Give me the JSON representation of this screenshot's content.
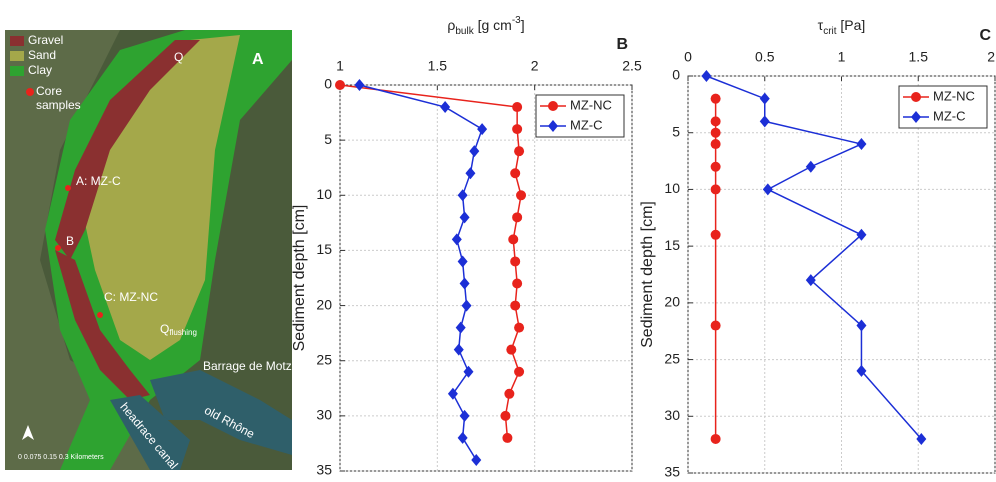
{
  "map": {
    "panel": "A",
    "legend": [
      "Gravel",
      "Sand",
      "Clay"
    ],
    "core_legend": [
      "Core",
      "samples"
    ],
    "flow": "Q",
    "flushing": {
      "symbol": "Q",
      "subscript": "flushing"
    },
    "sites": [
      "A: MZ-C",
      "B",
      "C: MZ-NC"
    ],
    "places": [
      "Barrage de Motz",
      "old Rhône",
      "headrace canal"
    ],
    "scale": "0  0.075 0.15        0.3 Kilometers"
  },
  "chart_data": [
    {
      "type": "line",
      "panel": "B",
      "title_parts": [
        "ρ",
        "bulk",
        " [g cm",
        "-3",
        "]"
      ],
      "ylabel": "Sediment depth [cm]",
      "xlim": [
        1,
        2.5
      ],
      "xticks": [
        1,
        1.5,
        2,
        2.5
      ],
      "ylim": [
        0,
        35
      ],
      "yticks": [
        0,
        5,
        10,
        15,
        20,
        25,
        30,
        35
      ],
      "y_inverted": true,
      "grid": true,
      "legend": "upper right",
      "series": [
        {
          "name": "MZ-NC",
          "color": "#e8231c",
          "marker": "circle",
          "depth": [
            0,
            2,
            4,
            6,
            8,
            10,
            12,
            14,
            16,
            18,
            20,
            22,
            24,
            26,
            28,
            30,
            32
          ],
          "values": [
            1.0,
            1.91,
            1.91,
            1.92,
            1.9,
            1.93,
            1.91,
            1.89,
            1.9,
            1.91,
            1.9,
            1.92,
            1.88,
            1.92,
            1.87,
            1.85,
            1.86
          ]
        },
        {
          "name": "MZ-C",
          "color": "#1c2fd6",
          "marker": "diamond",
          "depth": [
            0,
            2,
            4,
            6,
            8,
            10,
            12,
            14,
            16,
            18,
            20,
            22,
            24,
            26,
            28,
            30,
            32,
            34
          ],
          "values": [
            1.1,
            1.54,
            1.73,
            1.69,
            1.67,
            1.63,
            1.64,
            1.6,
            1.63,
            1.64,
            1.65,
            1.62,
            1.61,
            1.66,
            1.58,
            1.64,
            1.63,
            1.7
          ]
        }
      ]
    },
    {
      "type": "line",
      "panel": "C",
      "title_parts": [
        "τ",
        "crit",
        " [Pa]"
      ],
      "ylabel": "Sediment depth [cm]",
      "xlim": [
        0,
        2
      ],
      "xticks": [
        0,
        0.5,
        1,
        1.5,
        2
      ],
      "ylim": [
        0,
        35
      ],
      "yticks": [
        0,
        5,
        10,
        15,
        20,
        25,
        30,
        35
      ],
      "y_inverted": true,
      "grid": true,
      "legend": "upper right",
      "series": [
        {
          "name": "MZ-NC",
          "color": "#e8231c",
          "marker": "circle",
          "depth": [
            2,
            4,
            5,
            6,
            8,
            10,
            14,
            22,
            32
          ],
          "values": [
            0.18,
            0.18,
            0.18,
            0.18,
            0.18,
            0.18,
            0.18,
            0.18,
            0.18
          ]
        },
        {
          "name": "MZ-C",
          "color": "#1c2fd6",
          "marker": "diamond",
          "depth": [
            0,
            2,
            4,
            6,
            8,
            10,
            14,
            18,
            22,
            26,
            32
          ],
          "values": [
            0.12,
            0.5,
            0.5,
            1.13,
            0.8,
            0.52,
            1.13,
            0.8,
            1.13,
            1.13,
            1.52
          ]
        }
      ]
    }
  ]
}
